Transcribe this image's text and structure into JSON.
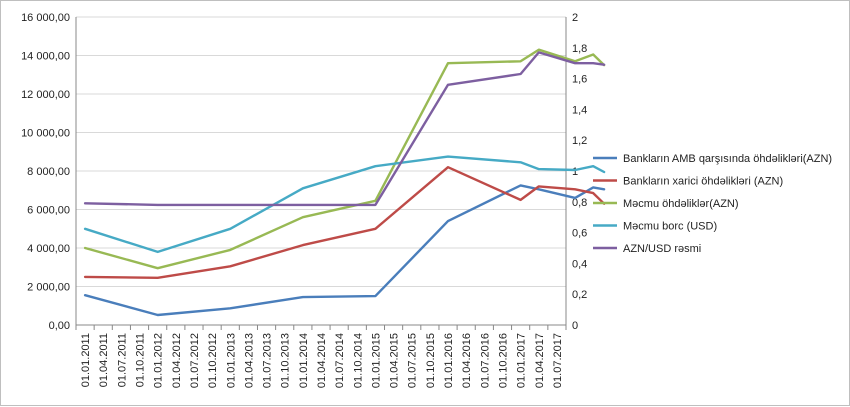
{
  "chart_data": {
    "type": "line",
    "title": "",
    "xlabel": "",
    "ylabel": "",
    "ylim": [
      0,
      16000
    ],
    "y2lim": [
      0,
      2
    ],
    "grid": "horizontal",
    "legend_position": "right",
    "y_ticks": [
      "0,00",
      "2 000,00",
      "4 000,00",
      "6 000,00",
      "8 000,00",
      "10 000,00",
      "12 000,00",
      "14 000,00",
      "16 000,00"
    ],
    "y2_ticks": [
      "0",
      "0,2",
      "0,4",
      "0,6",
      "0,8",
      "1",
      "1,2",
      "1,4",
      "1,6",
      "1,8",
      "2"
    ],
    "categories": [
      "01.01.2011",
      "01.04.2011",
      "01.07.2011",
      "01.10.2011",
      "01.01.2012",
      "01.04.2012",
      "01.07.2012",
      "01.10.2012",
      "01.01.2013",
      "01.04.2013",
      "01.07.2013",
      "01.10.2013",
      "01.01.2014",
      "01.04.2014",
      "01.07.2014",
      "01.10.2014",
      "01.01.2015",
      "01.04.2015",
      "01.07.2015",
      "01.10.2015",
      "01.01.2016",
      "01.04.2016",
      "01.07.2016",
      "01.10.2016",
      "01.01.2017",
      "01.04.2017",
      "01.07.2017"
    ],
    "series": [
      {
        "name": "Bankların AMB qarşısında öhdəlikləri(AZN)",
        "color": "#4a7ebb",
        "axis": "left",
        "points": [
          [
            0,
            1550
          ],
          [
            4,
            520
          ],
          [
            8,
            870
          ],
          [
            12,
            1450
          ],
          [
            16,
            1500
          ],
          [
            20,
            5400
          ],
          [
            24,
            7250
          ],
          [
            25,
            7050
          ],
          [
            27,
            6600
          ],
          [
            28,
            7150
          ],
          [
            28.6,
            7050
          ]
        ]
      },
      {
        "name": "Bankların xarici öhdəlikləri (AZN)",
        "color": "#be4b48",
        "axis": "left",
        "points": [
          [
            0,
            2500
          ],
          [
            4,
            2450
          ],
          [
            8,
            3050
          ],
          [
            12,
            4150
          ],
          [
            16,
            5000
          ],
          [
            20,
            8200
          ],
          [
            24,
            6500
          ],
          [
            25,
            7200
          ],
          [
            27,
            7050
          ],
          [
            28,
            6850
          ],
          [
            28.6,
            6300
          ]
        ]
      },
      {
        "name": "Məcmu öhdəliklər(AZN)",
        "color": "#98b954",
        "axis": "left",
        "points": [
          [
            0,
            4000
          ],
          [
            4,
            2950
          ],
          [
            8,
            3900
          ],
          [
            12,
            5600
          ],
          [
            16,
            6450
          ],
          [
            20,
            13600
          ],
          [
            24,
            13700
          ],
          [
            25,
            14300
          ],
          [
            27,
            13700
          ],
          [
            28,
            14050
          ],
          [
            28.6,
            13500
          ]
        ]
      },
      {
        "name": "Məcmu borc (USD)",
        "color": "#46aac5",
        "axis": "left",
        "points": [
          [
            0,
            5000
          ],
          [
            4,
            3800
          ],
          [
            8,
            5000
          ],
          [
            12,
            7100
          ],
          [
            16,
            8250
          ],
          [
            20,
            8750
          ],
          [
            24,
            8450
          ],
          [
            25,
            8100
          ],
          [
            27,
            8050
          ],
          [
            28,
            8250
          ],
          [
            28.6,
            7950
          ]
        ]
      },
      {
        "name": "AZN/USD rəsmi",
        "color": "#7d5fa0",
        "axis": "right",
        "points": [
          [
            0,
            0.79
          ],
          [
            4,
            0.78
          ],
          [
            8,
            0.78
          ],
          [
            12,
            0.78
          ],
          [
            16,
            0.78
          ],
          [
            20,
            1.56
          ],
          [
            24,
            1.63
          ],
          [
            25,
            1.77
          ],
          [
            27,
            1.7
          ],
          [
            28,
            1.7
          ],
          [
            28.6,
            1.69
          ]
        ]
      }
    ]
  }
}
